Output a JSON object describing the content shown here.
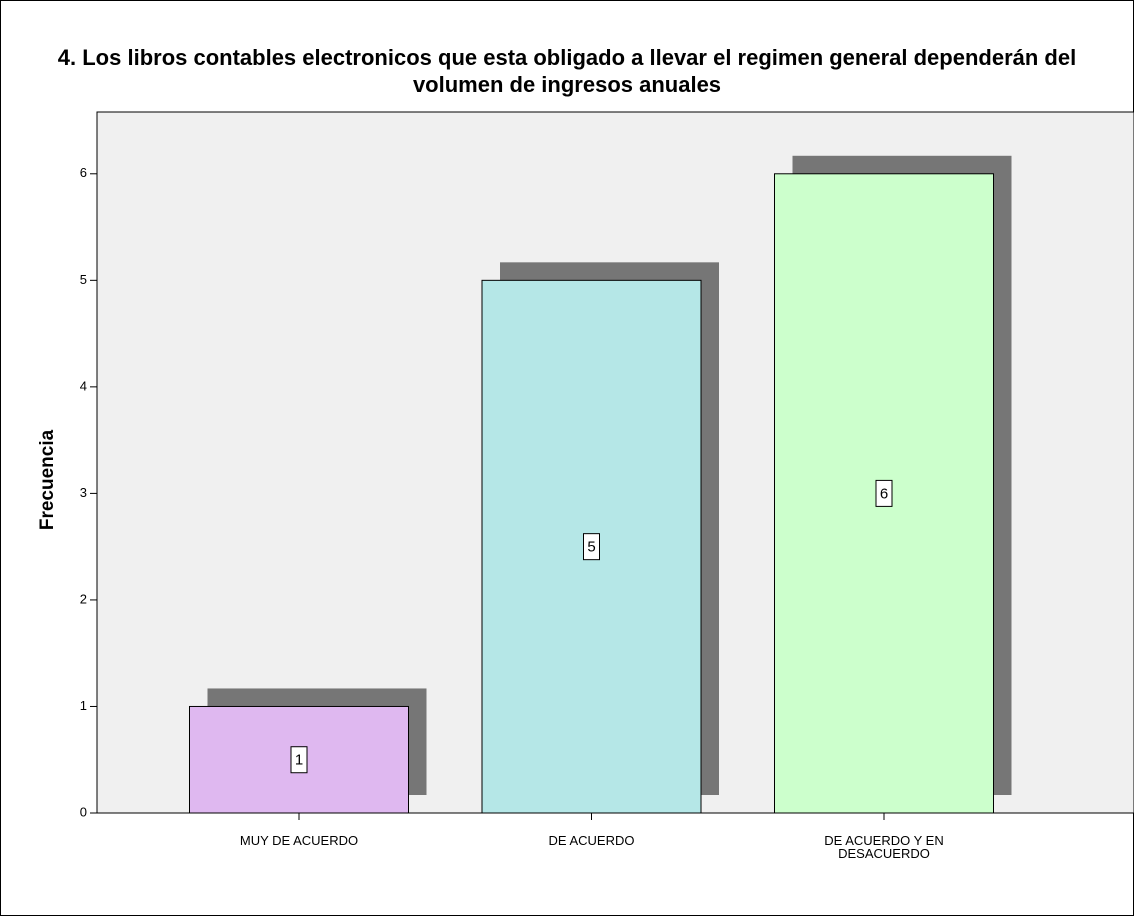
{
  "chart_data": {
    "type": "bar",
    "title": "4. Los libros contables electronicos que esta obligado a llevar el regimen general dependerán del volumen de ingresos anuales",
    "ylabel": "Frecuencia",
    "categories": [
      "MUY DE ACUERDO",
      "DE ACUERDO",
      "DE ACUERDO Y EN DESACUERDO"
    ],
    "values": [
      1,
      5,
      6
    ],
    "colors": [
      "#dfb8f0",
      "#b5e7e7",
      "#ccffcc"
    ],
    "ylim": [
      0,
      6.58
    ],
    "yticks": [
      0,
      1,
      2,
      3,
      4,
      5,
      6
    ],
    "grid": false
  }
}
